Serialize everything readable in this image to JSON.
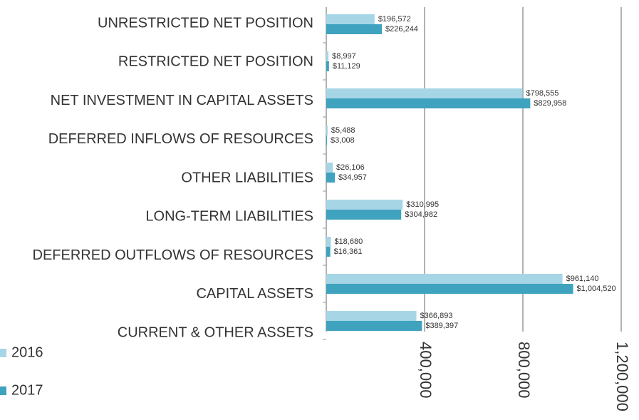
{
  "chart_data": {
    "type": "hbar",
    "categories": [
      "UNRESTRICTED NET POSITION",
      "RESTRICTED NET POSITION",
      "NET INVESTMENT IN CAPITAL ASSETS",
      "DEFERRED INFLOWS OF RESOURCES",
      "OTHER LIABILITIES",
      "LONG-TERM LIABILITIES",
      "DEFERRED OUTFLOWS OF RESOURCES",
      "CAPITAL ASSETS",
      "CURRENT & OTHER ASSETS"
    ],
    "series": [
      {
        "name": "2016",
        "color": "#a6d6e6",
        "values": [
          196572,
          8997,
          798555,
          5488,
          26106,
          310995,
          18680,
          961140,
          366893
        ],
        "value_labels": [
          "$196,572",
          "$8,997",
          "$798,555",
          "$5,488",
          "$26,106",
          "$310,995",
          "$18,680",
          "$961,140",
          "$366,893"
        ]
      },
      {
        "name": "2017",
        "color": "#3fa2be",
        "values": [
          226244,
          11129,
          829958,
          3008,
          34957,
          304982,
          16361,
          1004520,
          389397
        ],
        "value_labels": [
          "$226,244",
          "$11,129",
          "$829,958",
          "$3,008",
          "$34,957",
          "$304,982",
          "$16,361",
          "$1,004,520",
          "$389,397"
        ]
      }
    ],
    "xlim": [
      0,
      1200000
    ],
    "xticks": [
      {
        "value": 400000,
        "label": "400,000"
      },
      {
        "value": 800000,
        "label": "800,000"
      },
      {
        "value": 1200000,
        "label": "1,200,000"
      }
    ],
    "grid": true,
    "legend": "bottom-left"
  }
}
